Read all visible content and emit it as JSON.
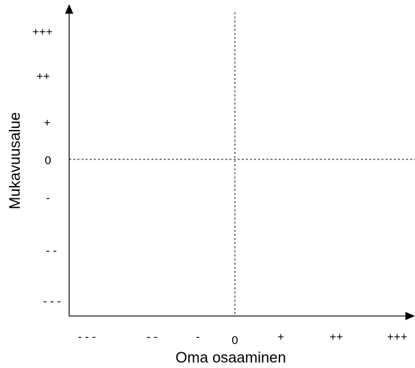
{
  "diagram": {
    "x_axis": {
      "title": "Oma osaaminen",
      "ticks": [
        "- - -",
        "- -",
        "-",
        "0",
        "+",
        "++",
        "+++"
      ]
    },
    "y_axis": {
      "title": "Mukavuusalue",
      "ticks": [
        "+++",
        "++",
        "+",
        "0",
        "-",
        "- -",
        "- - -"
      ]
    },
    "zero_lines": "dashed",
    "line_color": "#000000"
  }
}
